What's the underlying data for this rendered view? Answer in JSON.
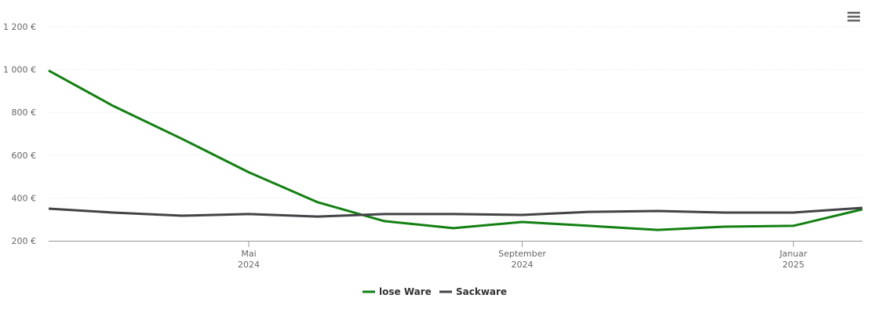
{
  "chart_data": {
    "type": "line",
    "x": [
      "2024-02",
      "2024-03",
      "2024-04",
      "2024-05",
      "2024-06",
      "2024-07",
      "2024-08",
      "2024-09",
      "2024-10",
      "2024-11",
      "2024-12",
      "2025-01",
      "2025-02"
    ],
    "series": [
      {
        "name": "lose Ware",
        "color": "#138013",
        "values": [
          995,
          830,
          676,
          520,
          380,
          292,
          259,
          288,
          270,
          251,
          266,
          270,
          347
        ]
      },
      {
        "name": "Sackware",
        "color": "#434348",
        "values": [
          350,
          332,
          317,
          325,
          313,
          325,
          325,
          321,
          335,
          339,
          332,
          332,
          354
        ]
      }
    ],
    "xlim": [
      "2024-02",
      "2025-02"
    ],
    "xticks": [
      {
        "value": "2024-05",
        "label": [
          "Mai",
          "2024"
        ]
      },
      {
        "value": "2024-09",
        "label": [
          "September",
          "2024"
        ]
      },
      {
        "value": "2025-01",
        "label": [
          "Januar",
          "2025"
        ]
      }
    ],
    "ylim": [
      200,
      1200
    ],
    "yticks": [
      {
        "value": 200,
        "label": "200 €"
      },
      {
        "value": 400,
        "label": "400 €"
      },
      {
        "value": 600,
        "label": "600 €"
      },
      {
        "value": 800,
        "label": "800 €"
      },
      {
        "value": 1000,
        "label": "1 000 €"
      },
      {
        "value": 1200,
        "label": "1 200 €"
      }
    ],
    "grid": true,
    "legend": "bottom"
  }
}
